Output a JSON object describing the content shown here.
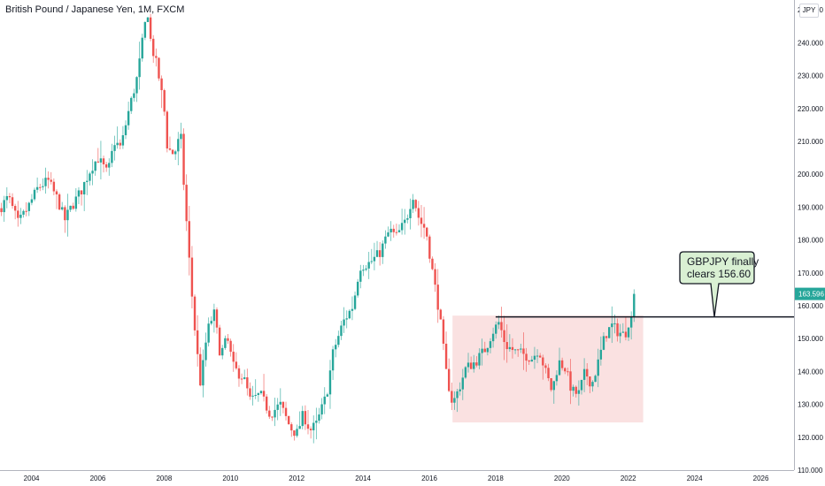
{
  "header": {
    "title": "British Pound / Japanese Yen, 1M, FXCM",
    "currency": "JPY"
  },
  "chart_data": {
    "type": "candlestick",
    "symbol": "GBPJPY",
    "interval": "1M",
    "source": "FXCM",
    "ylim": [
      110,
      253
    ],
    "xlim": [
      2003.05,
      2027.0
    ],
    "y_ticks": [
      "110.000",
      "120.000",
      "130.000",
      "140.000",
      "150.000",
      "160.000",
      "170.000",
      "180.000",
      "190.000",
      "200.000",
      "210.000",
      "220.000",
      "230.000",
      "240.000",
      "250.000"
    ],
    "x_ticks": [
      "2004",
      "2006",
      "2008",
      "2010",
      "2012",
      "2014",
      "2016",
      "2018",
      "2020",
      "2022",
      "2024",
      "2026"
    ],
    "last_price": "163.596",
    "last_price_value": 163.6,
    "up_color": "#26a69a",
    "down_color": "#ef5350",
    "grid": false,
    "path": [
      [
        2003.0,
        189
      ],
      [
        2003.3,
        193
      ],
      [
        2003.6,
        185
      ],
      [
        2003.9,
        190
      ],
      [
        2004.2,
        196
      ],
      [
        2004.5,
        198
      ],
      [
        2004.8,
        192
      ],
      [
        2005.0,
        186
      ],
      [
        2005.2,
        190
      ],
      [
        2005.5,
        195
      ],
      [
        2005.8,
        202
      ],
      [
        2006.0,
        205
      ],
      [
        2006.3,
        200
      ],
      [
        2006.5,
        210
      ],
      [
        2006.7,
        208
      ],
      [
        2006.9,
        218
      ],
      [
        2007.2,
        230
      ],
      [
        2007.4,
        244
      ],
      [
        2007.5,
        250
      ],
      [
        2007.6,
        240
      ],
      [
        2007.8,
        232
      ],
      [
        2008.0,
        220
      ],
      [
        2008.1,
        208
      ],
      [
        2008.3,
        206
      ],
      [
        2008.5,
        212
      ],
      [
        2008.6,
        196
      ],
      [
        2008.8,
        168
      ],
      [
        2008.95,
        150
      ],
      [
        2009.1,
        136
      ],
      [
        2009.3,
        152
      ],
      [
        2009.5,
        158
      ],
      [
        2009.7,
        145
      ],
      [
        2009.9,
        150
      ],
      [
        2010.1,
        141
      ],
      [
        2010.4,
        138
      ],
      [
        2010.6,
        131
      ],
      [
        2010.9,
        133
      ],
      [
        2011.2,
        127
      ],
      [
        2011.5,
        130
      ],
      [
        2011.8,
        123
      ],
      [
        2012.0,
        121
      ],
      [
        2012.2,
        127
      ],
      [
        2012.4,
        122
      ],
      [
        2012.6,
        124
      ],
      [
        2012.9,
        133
      ],
      [
        2013.1,
        146
      ],
      [
        2013.4,
        155
      ],
      [
        2013.7,
        160
      ],
      [
        2013.9,
        172
      ],
      [
        2014.2,
        173
      ],
      [
        2014.5,
        176
      ],
      [
        2014.8,
        183
      ],
      [
        2015.0,
        181
      ],
      [
        2015.3,
        186
      ],
      [
        2015.5,
        194
      ],
      [
        2015.7,
        186
      ],
      [
        2015.9,
        183
      ],
      [
        2016.1,
        170
      ],
      [
        2016.3,
        158
      ],
      [
        2016.5,
        140
      ],
      [
        2016.7,
        130
      ],
      [
        2016.9,
        135
      ],
      [
        2017.1,
        141
      ],
      [
        2017.4,
        143
      ],
      [
        2017.7,
        147
      ],
      [
        2017.9,
        152
      ],
      [
        2018.1,
        155
      ],
      [
        2018.3,
        148
      ],
      [
        2018.6,
        146
      ],
      [
        2018.9,
        145
      ],
      [
        2019.1,
        144
      ],
      [
        2019.3,
        147
      ],
      [
        2019.5,
        140
      ],
      [
        2019.7,
        134
      ],
      [
        2019.9,
        143
      ],
      [
        2020.1,
        141
      ],
      [
        2020.3,
        134
      ],
      [
        2020.5,
        133
      ],
      [
        2020.7,
        140
      ],
      [
        2020.9,
        136
      ],
      [
        2021.1,
        143
      ],
      [
        2021.3,
        151
      ],
      [
        2021.5,
        154
      ],
      [
        2021.7,
        152
      ],
      [
        2021.9,
        151
      ],
      [
        2022.0,
        155
      ],
      [
        2022.1,
        156
      ],
      [
        2022.2,
        163.6
      ]
    ],
    "annotations": {
      "range_box": {
        "x_start": 2016.7,
        "x_end": 2022.45,
        "y_low": 124.5,
        "y_high": 157,
        "color": "#f8d7d7"
      },
      "level_line": {
        "value": 156.6,
        "x_start": 2018.0,
        "color": "#131722"
      },
      "callout": {
        "lines": [
          "GBPJPY finally",
          "clears 156.60"
        ],
        "bg_color": "#d9f0d3",
        "border_color": "#131722"
      }
    }
  }
}
